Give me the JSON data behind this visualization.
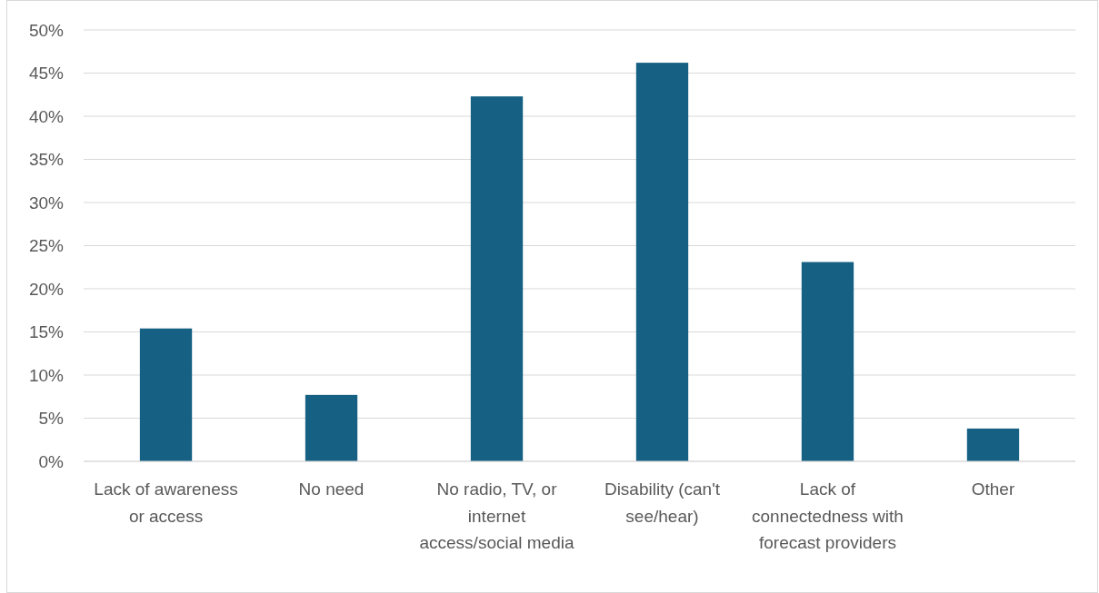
{
  "chart_data": {
    "type": "bar",
    "categories": [
      "Lack of awareness or access",
      "No need",
      "No radio, TV, or internet access/social media",
      "Disability (can't see/hear)",
      "Lack of connectedness with forecast providers",
      "Other"
    ],
    "values": [
      15.4,
      7.7,
      42.3,
      46.2,
      23.1,
      3.8
    ],
    "color": "#166083",
    "ylim": [
      0,
      50
    ],
    "yticks": [
      {
        "value": 0,
        "label": "0%"
      },
      {
        "value": 5,
        "label": "5%"
      },
      {
        "value": 10,
        "label": "10%"
      },
      {
        "value": 15,
        "label": "15%"
      },
      {
        "value": 20,
        "label": "20%"
      },
      {
        "value": 25,
        "label": "25%"
      },
      {
        "value": 30,
        "label": "30%"
      },
      {
        "value": 35,
        "label": "35%"
      },
      {
        "value": 40,
        "label": "40%"
      },
      {
        "value": 45,
        "label": "45%"
      },
      {
        "value": 50,
        "label": "50%"
      }
    ],
    "grid": "y"
  }
}
